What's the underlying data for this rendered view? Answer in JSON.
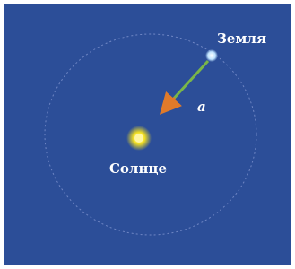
{
  "labels": {
    "earth": "Земля",
    "sun": "Солнце",
    "acceleration": "a"
  }
}
